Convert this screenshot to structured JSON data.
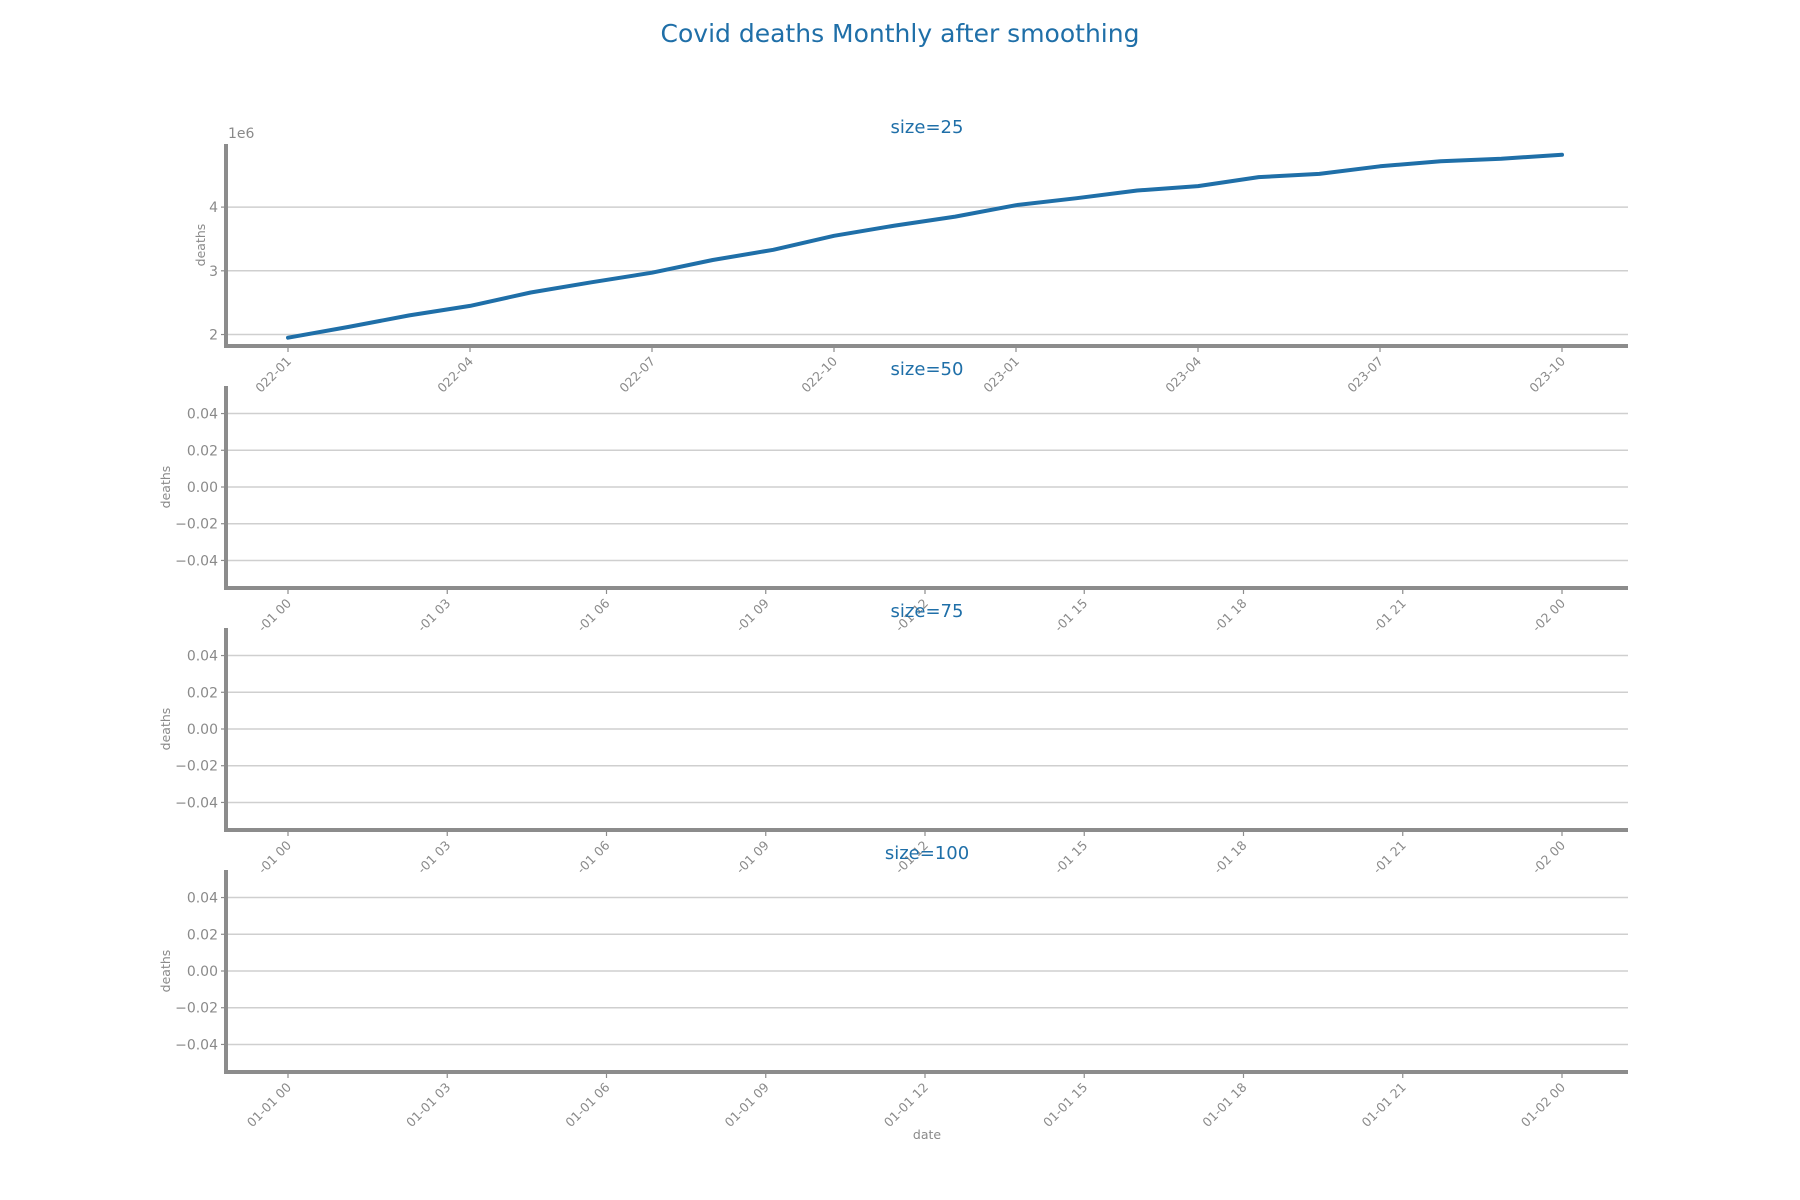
{
  "title": "Covid deaths Monthly after smoothing",
  "colors": {
    "line": "#1f6fa8",
    "title": "#1f6fa8",
    "text": "#8a8a8a",
    "grid": "#cfcfcf",
    "axis": "#8c8c8c"
  },
  "chart_data": [
    {
      "type": "line",
      "title": "size=25",
      "xlabel": "",
      "ylabel": "deaths",
      "y_multiplier_label": "1e6",
      "grid": true,
      "x_ticks": [
        "2022-01",
        "2022-04",
        "2022-07",
        "2022-10",
        "2023-01",
        "2023-04",
        "2023-07",
        "2023-10"
      ],
      "x_tick_labels": [
        "022-01",
        "022-04",
        "022-07",
        "022-10",
        "023-01",
        "023-04",
        "023-07",
        "023-10"
      ],
      "y_ticks": [
        2,
        3,
        4
      ],
      "y_tick_labels": [
        "2",
        "3",
        "4"
      ],
      "xlim": [
        "2021-12-01",
        "2023-12-01"
      ],
      "ylim": [
        1.82,
        4.99
      ],
      "series": [
        {
          "x": [
            "2022-01",
            "2022-02",
            "2022-03",
            "2022-04",
            "2022-05",
            "2022-06",
            "2022-07",
            "2022-08",
            "2022-09",
            "2022-10",
            "2022-11",
            "2022-12",
            "2023-01",
            "2023-02",
            "2023-03",
            "2023-04",
            "2023-05",
            "2023-06",
            "2023-07",
            "2023-08",
            "2023-09",
            "2023-10"
          ],
          "values": [
            1.95,
            2.12,
            2.3,
            2.45,
            2.66,
            2.82,
            2.97,
            3.17,
            3.33,
            3.55,
            3.71,
            3.85,
            4.03,
            4.14,
            4.26,
            4.33,
            4.47,
            4.52,
            4.64,
            4.72,
            4.76,
            4.82
          ]
        }
      ]
    },
    {
      "type": "line",
      "title": "size=50",
      "xlabel": "",
      "ylabel": "deaths",
      "grid": true,
      "x_ticks": [
        "-01 00",
        "-01 03",
        "-01 06",
        "-01 09",
        "-01 12",
        "-01 15",
        "-01 18",
        "-01 21",
        "-02 00"
      ],
      "y_ticks": [
        0.04,
        0.02,
        0.0,
        -0.02,
        -0.04
      ],
      "y_tick_labels": [
        "0.04",
        "0.02",
        "0.00",
        "−0.02",
        "−0.04"
      ],
      "ylim": [
        -0.055,
        0.055
      ],
      "series": []
    },
    {
      "type": "line",
      "title": "size=75",
      "xlabel": "",
      "ylabel": "deaths",
      "grid": true,
      "x_ticks": [
        "-01 00",
        "-01 03",
        "-01 06",
        "-01 09",
        "-01 12",
        "-01 15",
        "-01 18",
        "-01 21",
        "-02 00"
      ],
      "y_ticks": [
        0.04,
        0.02,
        0.0,
        -0.02,
        -0.04
      ],
      "y_tick_labels": [
        "0.04",
        "0.02",
        "0.00",
        "−0.02",
        "−0.04"
      ],
      "ylim": [
        -0.055,
        0.055
      ],
      "series": []
    },
    {
      "type": "line",
      "title": "size=100",
      "xlabel": "date",
      "ylabel": "deaths",
      "grid": true,
      "x_ticks": [
        "01-01 00",
        "01-01 03",
        "01-01 06",
        "01-01 09",
        "01-01 12",
        "01-01 15",
        "01-01 18",
        "01-01 21",
        "01-02 00"
      ],
      "y_ticks": [
        0.04,
        0.02,
        0.0,
        -0.02,
        -0.04
      ],
      "y_tick_labels": [
        "0.04",
        "0.02",
        "0.00",
        "−0.02",
        "−0.04"
      ],
      "ylim": [
        -0.055,
        0.055
      ],
      "series": []
    }
  ]
}
